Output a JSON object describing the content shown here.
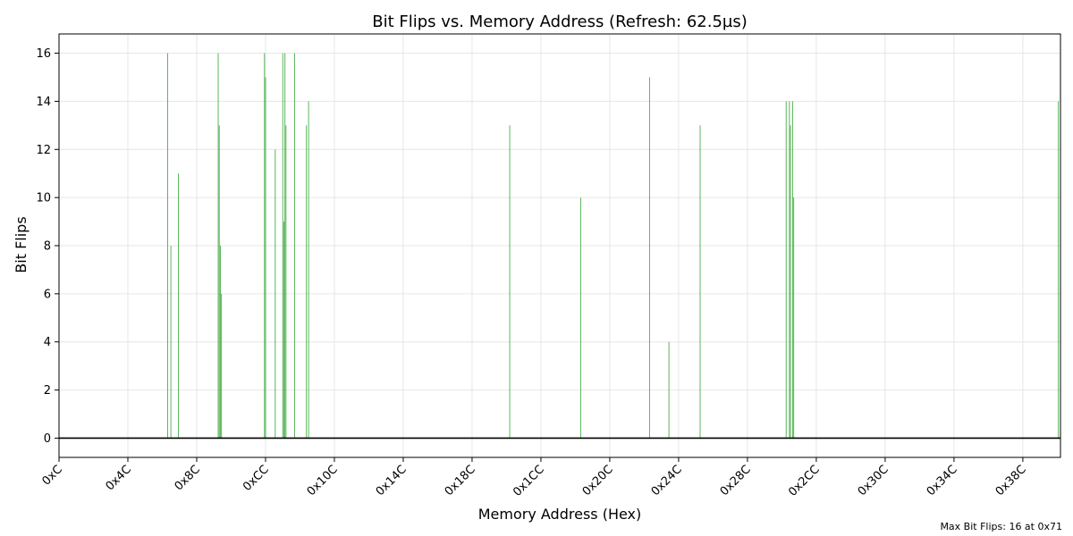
{
  "chart_data": {
    "type": "bar",
    "title": "Bit Flips vs. Memory Address (Refresh: 62.5µs)",
    "xlabel": "Memory Address (Hex)",
    "ylabel": "Bit Flips",
    "x_ticks": [
      {
        "value": 12,
        "label": "0xC"
      },
      {
        "value": 76,
        "label": "0x4C"
      },
      {
        "value": 140,
        "label": "0x8C"
      },
      {
        "value": 204,
        "label": "0xCC"
      },
      {
        "value": 268,
        "label": "0x10C"
      },
      {
        "value": 332,
        "label": "0x14C"
      },
      {
        "value": 396,
        "label": "0x18C"
      },
      {
        "value": 460,
        "label": "0x1CC"
      },
      {
        "value": 524,
        "label": "0x20C"
      },
      {
        "value": 588,
        "label": "0x24C"
      },
      {
        "value": 652,
        "label": "0x28C"
      },
      {
        "value": 716,
        "label": "0x2CC"
      },
      {
        "value": 780,
        "label": "0x30C"
      },
      {
        "value": 844,
        "label": "0x34C"
      },
      {
        "value": 908,
        "label": "0x38C"
      }
    ],
    "y_ticks": [
      0,
      2,
      4,
      6,
      8,
      10,
      12,
      14,
      16
    ],
    "xlim": [
      12,
      943
    ],
    "ylim": [
      -0.8,
      16.8
    ],
    "grid": true,
    "bar_color": "#2ca02c",
    "baseline": 0,
    "points": [
      {
        "x": 113,
        "y": 16
      },
      {
        "x": 116,
        "y": 8
      },
      {
        "x": 123,
        "y": 11
      },
      {
        "x": 160,
        "y": 16
      },
      {
        "x": 161,
        "y": 13
      },
      {
        "x": 162,
        "y": 8
      },
      {
        "x": 163,
        "y": 6
      },
      {
        "x": 203,
        "y": 16
      },
      {
        "x": 204,
        "y": 15
      },
      {
        "x": 213,
        "y": 12
      },
      {
        "x": 220,
        "y": 16
      },
      {
        "x": 221,
        "y": 9
      },
      {
        "x": 222,
        "y": 16
      },
      {
        "x": 223,
        "y": 13
      },
      {
        "x": 231,
        "y": 16
      },
      {
        "x": 242,
        "y": 13
      },
      {
        "x": 244,
        "y": 14
      },
      {
        "x": 431,
        "y": 13
      },
      {
        "x": 497,
        "y": 10
      },
      {
        "x": 561,
        "y": 15
      },
      {
        "x": 579,
        "y": 4
      },
      {
        "x": 608,
        "y": 13
      },
      {
        "x": 688,
        "y": 14
      },
      {
        "x": 691,
        "y": 14
      },
      {
        "x": 692,
        "y": 13
      },
      {
        "x": 694,
        "y": 14
      },
      {
        "x": 695,
        "y": 10
      },
      {
        "x": 941,
        "y": 14
      }
    ],
    "annotation": "Max Bit Flips: 16 at 0x71"
  }
}
